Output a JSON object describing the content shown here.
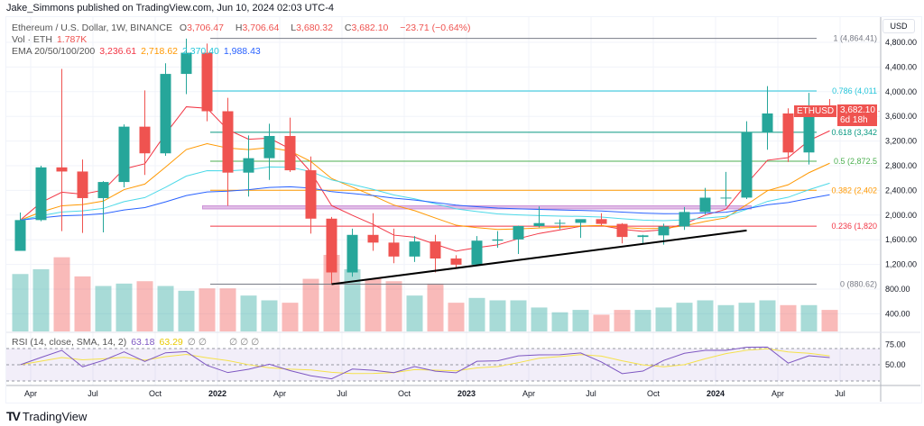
{
  "publisher_line": "Jake_Simmons published on TradingView.com, Jun 10, 2024 02:03 UTC-4",
  "brand": "TradingView",
  "legend": {
    "symbol": "Ethereum / U.S. Dollar, 1W, BINANCE",
    "o": "O",
    "o_val": "3,706.47",
    "h": "H",
    "h_val": "3,706.64",
    "l": "L",
    "l_val": "3,680.32",
    "c": "C",
    "c_val": "3,682.10",
    "change": "−23.71 (−0.64%)",
    "vol_label": "Vol · ETH",
    "vol_val": "1.787K",
    "ema_label": "EMA 20/50/100/200",
    "ema20": "3,236.61",
    "ema50": "2,718.62",
    "ema100": "2,370.40",
    "ema200": "1,988.43",
    "rsi_label": "RSI (14, close, SMA, 14, 2)",
    "rsi_val": "63.18",
    "rsi_sma": "63.29",
    "na": "∅ ∅",
    "na2": "∅ ∅ ∅"
  },
  "price_axis": {
    "currency": "USD",
    "ticks": [
      "4,800.00",
      "4,400.00",
      "4,000.00",
      "3,600.00",
      "3,200.00",
      "2,800.00",
      "2,400.00",
      "2,000.00",
      "1,600.00",
      "1,200.00",
      "800.00",
      "400.00"
    ],
    "tick_values": [
      4800,
      4400,
      4000,
      3600,
      3200,
      2800,
      2400,
      2000,
      1600,
      1200,
      800,
      400
    ],
    "last_symbol": "ETHUSD",
    "last_price": "3,682.10",
    "countdown": "6d 18h"
  },
  "rsi_axis": {
    "ticks": [
      "75.00",
      "50.00"
    ]
  },
  "colors": {
    "up": "#26a69a",
    "down": "#ef5350",
    "ema20": "#f23645",
    "ema50": "#ff9800",
    "ema100": "#4dd9e8",
    "ema200": "#2962ff",
    "rsi": "#7e57c2",
    "rsi_sma": "#f5e14a"
  },
  "chart_data": {
    "type": "candlestick",
    "title": "Ethereum / U.S. Dollar, 1W, BINANCE",
    "x_ticks": [
      "Apr",
      "Jul",
      "Oct",
      "2022",
      "Apr",
      "Jul",
      "Oct",
      "2023",
      "Apr",
      "Jul",
      "Oct",
      "2024",
      "Apr",
      "Jul"
    ],
    "months": [
      "2021-03",
      "2021-04",
      "2021-05",
      "2021-06",
      "2021-07",
      "2021-08",
      "2021-09",
      "2021-10",
      "2021-11",
      "2021-12",
      "2022-01",
      "2022-02",
      "2022-03",
      "2022-04",
      "2022-05",
      "2022-06",
      "2022-07",
      "2022-08",
      "2022-09",
      "2022-10",
      "2022-11",
      "2022-12",
      "2023-01",
      "2023-02",
      "2023-03",
      "2023-04",
      "2023-05",
      "2023-06",
      "2023-07",
      "2023-08",
      "2023-09",
      "2023-10",
      "2023-11",
      "2023-12",
      "2024-01",
      "2024-02",
      "2024-03",
      "2024-04",
      "2024-05",
      "2024-06"
    ],
    "open": [
      1420,
      1919,
      2773,
      2706,
      2275,
      2536,
      3433,
      3001,
      4288,
      4631,
      3683,
      2688,
      2922,
      3282,
      2726,
      1942,
      1070,
      1679,
      1554,
      1328,
      1572,
      1296,
      1196,
      1585,
      1605,
      1822,
      1870,
      1874,
      1934,
      1857,
      1645,
      1671,
      1815,
      2050,
      2282,
      2283,
      3340,
      3647,
      3015,
      3762
    ],
    "high": [
      2040,
      2800,
      4370,
      2900,
      2550,
      3470,
      4020,
      4460,
      4860,
      4780,
      3900,
      3290,
      3480,
      3580,
      2950,
      1970,
      1780,
      2030,
      1780,
      1660,
      1680,
      1350,
      1660,
      1740,
      1830,
      2140,
      1930,
      1930,
      2030,
      1870,
      1680,
      1860,
      2130,
      2440,
      2700,
      3520,
      4090,
      3730,
      3980,
      3880
    ],
    "low": [
      1420,
      1900,
      1740,
      1710,
      1720,
      2450,
      2650,
      2960,
      3960,
      3520,
      2150,
      2300,
      2570,
      2700,
      1700,
      880,
      1000,
      1420,
      1220,
      1240,
      1070,
      1150,
      1190,
      1470,
      1370,
      1800,
      1770,
      1630,
      1830,
      1540,
      1530,
      1520,
      1760,
      2010,
      2150,
      2260,
      3060,
      2860,
      2820,
      3630
    ],
    "close": [
      1919,
      2773,
      2706,
      2275,
      2536,
      3433,
      3001,
      4288,
      4631,
      3683,
      2688,
      2922,
      3282,
      2726,
      1942,
      1070,
      1679,
      1554,
      1328,
      1572,
      1296,
      1196,
      1585,
      1605,
      1822,
      1870,
      1874,
      1934,
      1857,
      1645,
      1671,
      1815,
      2050,
      2282,
      2283,
      3340,
      3647,
      3015,
      3762,
      3682
    ],
    "volume": [
      2400,
      2600,
      3100,
      2300,
      1900,
      2000,
      2100,
      1900,
      1700,
      1800,
      1800,
      1500,
      1300,
      1200,
      2200,
      3200,
      2600,
      2200,
      2100,
      1500,
      2000,
      1200,
      1400,
      1300,
      1300,
      1000,
      800,
      900,
      700,
      900,
      900,
      1000,
      1200,
      1300,
      1100,
      1200,
      1300,
      1100,
      1100,
      900
    ],
    "fib_levels": [
      {
        "ratio": 1,
        "label": "1 (4,864.41)",
        "price": 4864.41,
        "color": "#787b86"
      },
      {
        "ratio": 0.786,
        "label": "0.786 (4,011",
        "price": 4011,
        "color": "#26c6da"
      },
      {
        "ratio": 0.618,
        "label": "0.618 (3,342",
        "price": 3342,
        "color": "#089981"
      },
      {
        "ratio": 0.5,
        "label": "0.5 (2,872.5",
        "price": 2872.5,
        "color": "#4caf50"
      },
      {
        "ratio": 0.382,
        "label": "0.382 (2,402",
        "price": 2402,
        "color": "#ff9800"
      },
      {
        "ratio": 0.236,
        "label": "0.236 (1,820",
        "price": 1820,
        "color": "#f23645"
      },
      {
        "ratio": 0,
        "label": "0 (880.62)",
        "price": 880.62,
        "color": "#787b86"
      }
    ],
    "support_zone": {
      "from": "2021-12",
      "to": "2024-02",
      "low": 2100,
      "high": 2150
    },
    "trendline": {
      "from": [
        "2022-06",
        880
      ],
      "to": [
        "2024-02",
        1750
      ]
    },
    "ylim": [
      200,
      5100
    ],
    "rsi_bands": [
      70,
      50,
      30
    ]
  }
}
